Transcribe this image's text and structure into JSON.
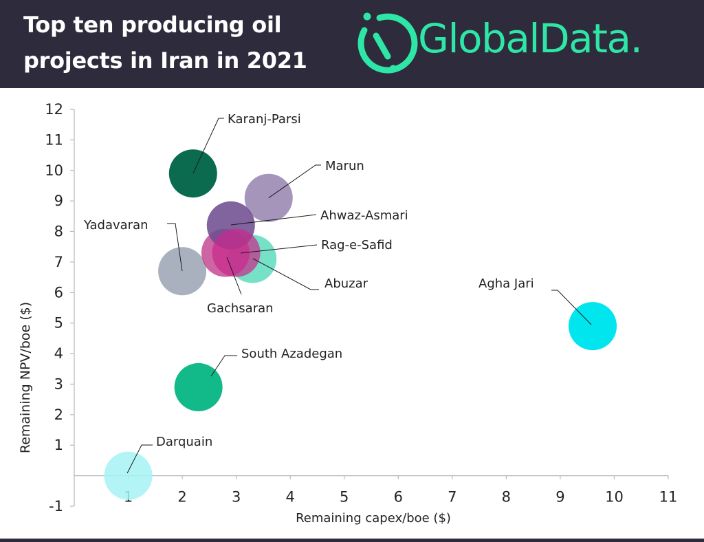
{
  "header": {
    "title_line1": "Top ten producing oil",
    "title_line2": "projects in Iran in 2021",
    "brand_name": "GlobalData.",
    "brand_icon": "globaldata-logo-icon",
    "background": "#2e2c3c",
    "brand_color": "#2ee6a6"
  },
  "chart_data": {
    "type": "scatter",
    "bubble": true,
    "title": "Top ten producing oil projects in Iran in 2021",
    "xlabel": "Remaining capex/boe ($)",
    "ylabel": "Remaining NPV/boe ($)",
    "xlim": [
      0,
      11
    ],
    "ylim": [
      -1,
      12
    ],
    "xticks": [
      1,
      2,
      3,
      4,
      5,
      6,
      7,
      8,
      9,
      10,
      11
    ],
    "yticks": [
      -1,
      1,
      2,
      3,
      4,
      5,
      6,
      7,
      8,
      9,
      10,
      11,
      12
    ],
    "grid": false,
    "legend": "none",
    "points": [
      {
        "name": "Karanj-Parsi",
        "x": 2.2,
        "y": 9.9,
        "color": "#0b6b4f"
      },
      {
        "name": "Marun",
        "x": 3.6,
        "y": 9.1,
        "color": "#9d8cb5"
      },
      {
        "name": "Ahwaz-Asmari",
        "x": 2.9,
        "y": 8.2,
        "color": "#6f4d8f"
      },
      {
        "name": "Yadavaran",
        "x": 2.0,
        "y": 6.7,
        "color": "#a8b1bd"
      },
      {
        "name": "Abuzar",
        "x": 3.3,
        "y": 7.1,
        "color": "#5fdcbd"
      },
      {
        "name": "Gachsaran",
        "x": 2.8,
        "y": 7.3,
        "color": "#c2428f"
      },
      {
        "name": "Rag-e-Safid",
        "x": 3.0,
        "y": 7.3,
        "color": "#c92a8c"
      },
      {
        "name": "Agha Jari",
        "x": 9.6,
        "y": 4.9,
        "color": "#00e5ee"
      },
      {
        "name": "South Azadegan",
        "x": 2.3,
        "y": 2.9,
        "color": "#12b989"
      },
      {
        "name": "Darquain",
        "x": 1.0,
        "y": 0.0,
        "color": "#a6f3f5"
      }
    ]
  }
}
